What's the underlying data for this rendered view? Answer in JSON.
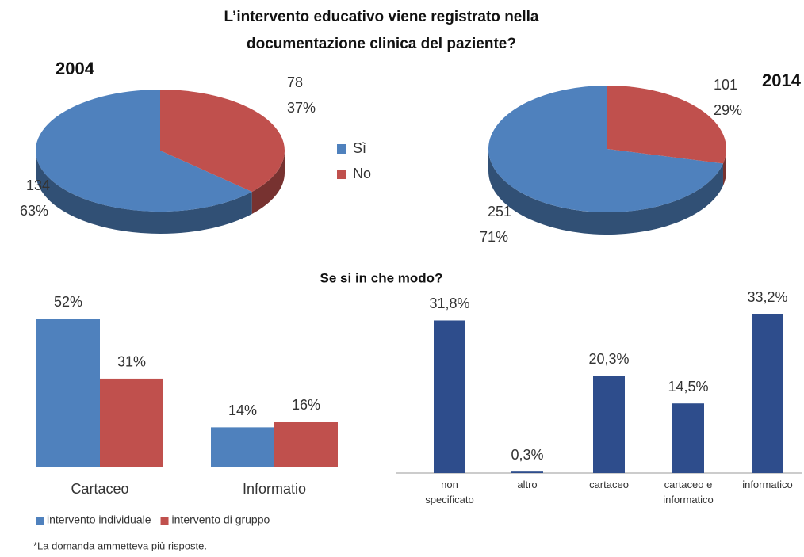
{
  "title": [
    "L’intervento educativo viene registrato nella",
    "documentazione  clinica del paziente?"
  ],
  "subtitle": "Se si in che modo?",
  "footnote": "*La domanda ammetteva più risposte.",
  "chart_data": [
    {
      "type": "pie",
      "title": "2004",
      "categories": [
        "Sì",
        "No"
      ],
      "values": [
        134,
        78
      ],
      "percent_labels": [
        "63%",
        "37%"
      ],
      "colors": [
        "#4f81bd",
        "#c0504d"
      ],
      "legend": true
    },
    {
      "type": "pie",
      "title": "2014",
      "categories": [
        "Sì",
        "No"
      ],
      "values": [
        251,
        101
      ],
      "percent_labels": [
        "71%",
        "29%"
      ],
      "colors": [
        "#4f81bd",
        "#c0504d"
      ],
      "legend": false
    },
    {
      "type": "bar",
      "categories": [
        "Cartaceo",
        "Informatio"
      ],
      "series": [
        {
          "name": "intervento individuale",
          "color": "#4f81bd",
          "values": [
            52,
            14
          ],
          "value_labels": [
            "52%",
            "14%"
          ]
        },
        {
          "name": "intervento di gruppo",
          "color": "#c0504d",
          "values": [
            31,
            16
          ],
          "value_labels": [
            "31%",
            "16%"
          ]
        }
      ]
    },
    {
      "type": "bar",
      "categories": [
        "non specificato",
        "altro",
        "cartaceo",
        "cartaceo e informatico",
        "informatico"
      ],
      "series": [
        {
          "color": "#2e4d8c",
          "values": [
            31.8,
            0.3,
            20.3,
            14.5,
            33.2
          ],
          "value_labels": [
            "31,8%",
            "0,3%",
            "20,3%",
            "14,5%",
            "33,2%"
          ]
        }
      ]
    }
  ]
}
